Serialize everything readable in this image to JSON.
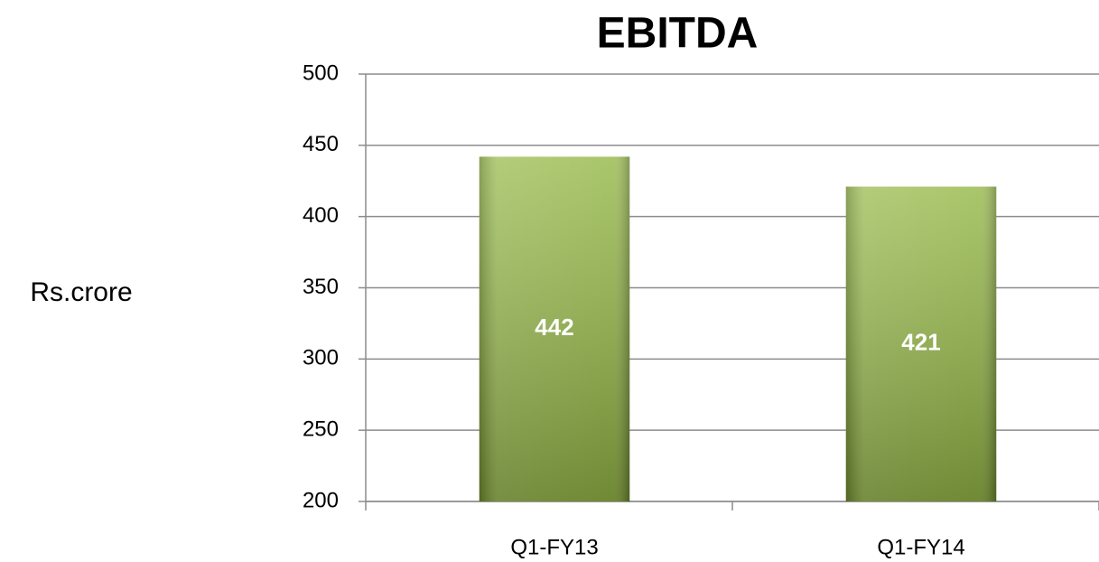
{
  "chart_data": {
    "type": "bar",
    "title": "EBITDA",
    "y_label": "Rs.crore",
    "categories": [
      "Q1-FY13",
      "Q1-FY14"
    ],
    "values": [
      442,
      421
    ],
    "color": "#8fb43c",
    "ylim": [
      200,
      500
    ],
    "yticks": [
      200,
      250,
      300,
      350,
      400,
      450,
      500
    ],
    "grid": true
  }
}
